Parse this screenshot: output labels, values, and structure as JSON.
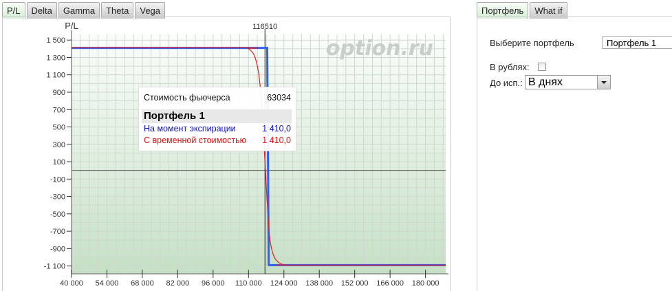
{
  "left_tabs": [
    "P/L",
    "Delta",
    "Gamma",
    "Theta",
    "Vega"
  ],
  "right_tabs": [
    "Портфель",
    "What if"
  ],
  "watermark": "option.ru",
  "tooltip": {
    "futures_label": "Стоимость фьючерса",
    "futures_value": "63034",
    "portfolio": "Портфель 1",
    "rows": [
      {
        "label": "На момент экспирации",
        "value": "1 410,0",
        "color": "#1010c8"
      },
      {
        "label": "С временной стоимостью",
        "value": "1 410,0",
        "color": "#e01010"
      }
    ]
  },
  "settings": {
    "portfolio_label": "Выберите портфель",
    "portfolio_value": "Портфель 1",
    "rubles_label": "В рублях:",
    "rubles_checked": false,
    "expiry_label": "До исп.:",
    "expiry_value": "В днях"
  },
  "chart_data": {
    "type": "line",
    "ylabel": "P/L",
    "xlim": [
      40000,
      188000
    ],
    "ylim": [
      -1190,
      1565
    ],
    "x_ticks": [
      "40 000",
      "54 000",
      "68 000",
      "82 000",
      "96 000",
      "110 000",
      "124 000",
      "138 000",
      "152 000",
      "166 000",
      "180 000"
    ],
    "x_tick_values": [
      40000,
      54000,
      68000,
      82000,
      96000,
      110000,
      124000,
      138000,
      152000,
      166000,
      180000
    ],
    "y_ticks": [
      "1 500",
      "1 300",
      "1 100",
      "900",
      "700",
      "500",
      "300",
      "100",
      "-100",
      "-300",
      "-500",
      "-700",
      "-900",
      "-1 100"
    ],
    "y_tick_values": [
      1500,
      1300,
      1100,
      900,
      700,
      500,
      300,
      100,
      -100,
      -300,
      -500,
      -700,
      -900,
      -1100
    ],
    "marker_line": {
      "x": 116510,
      "label": "116510"
    },
    "grid": true,
    "series": [
      {
        "color": "#3060f0",
        "points": [
          [
            40000,
            1410
          ],
          [
            117400,
            1410
          ],
          [
            118000,
            -1090
          ],
          [
            188000,
            -1090
          ]
        ]
      },
      {
        "color": "#e02020",
        "points": [
          [
            40000,
            1410
          ],
          [
            108000,
            1410
          ],
          [
            110000,
            1398
          ],
          [
            112000,
            1340
          ],
          [
            113500,
            1200
          ],
          [
            114500,
            1000
          ],
          [
            115500,
            620
          ],
          [
            116500,
            100
          ],
          [
            117500,
            -420
          ],
          [
            118500,
            -800
          ],
          [
            120000,
            -985
          ],
          [
            122000,
            -1060
          ],
          [
            124000,
            -1085
          ],
          [
            126000,
            -1090
          ],
          [
            188000,
            -1090
          ]
        ]
      }
    ]
  }
}
